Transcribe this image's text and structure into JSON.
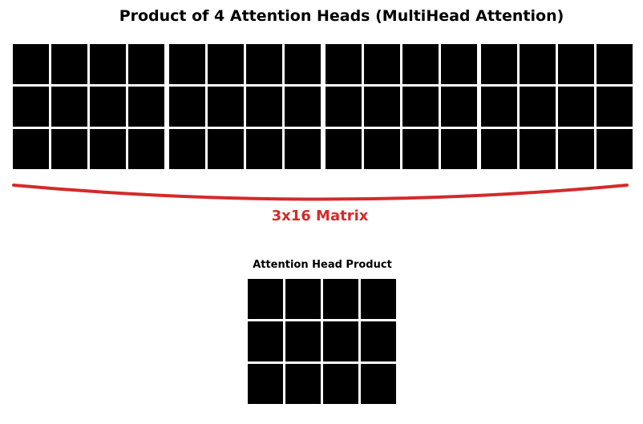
{
  "title": "Product of 4 Attention Heads (MultiHead Attention)",
  "heads": [
    {
      "rows": 3,
      "cols": 4
    },
    {
      "rows": 3,
      "cols": 4
    },
    {
      "rows": 3,
      "cols": 4
    },
    {
      "rows": 3,
      "cols": 4
    }
  ],
  "brace_label": "3x16 Matrix",
  "product": {
    "title": "Attention Head Product",
    "rows": 3,
    "cols": 4
  },
  "colors": {
    "accent": "#d42a2a",
    "cell": "#000000"
  }
}
